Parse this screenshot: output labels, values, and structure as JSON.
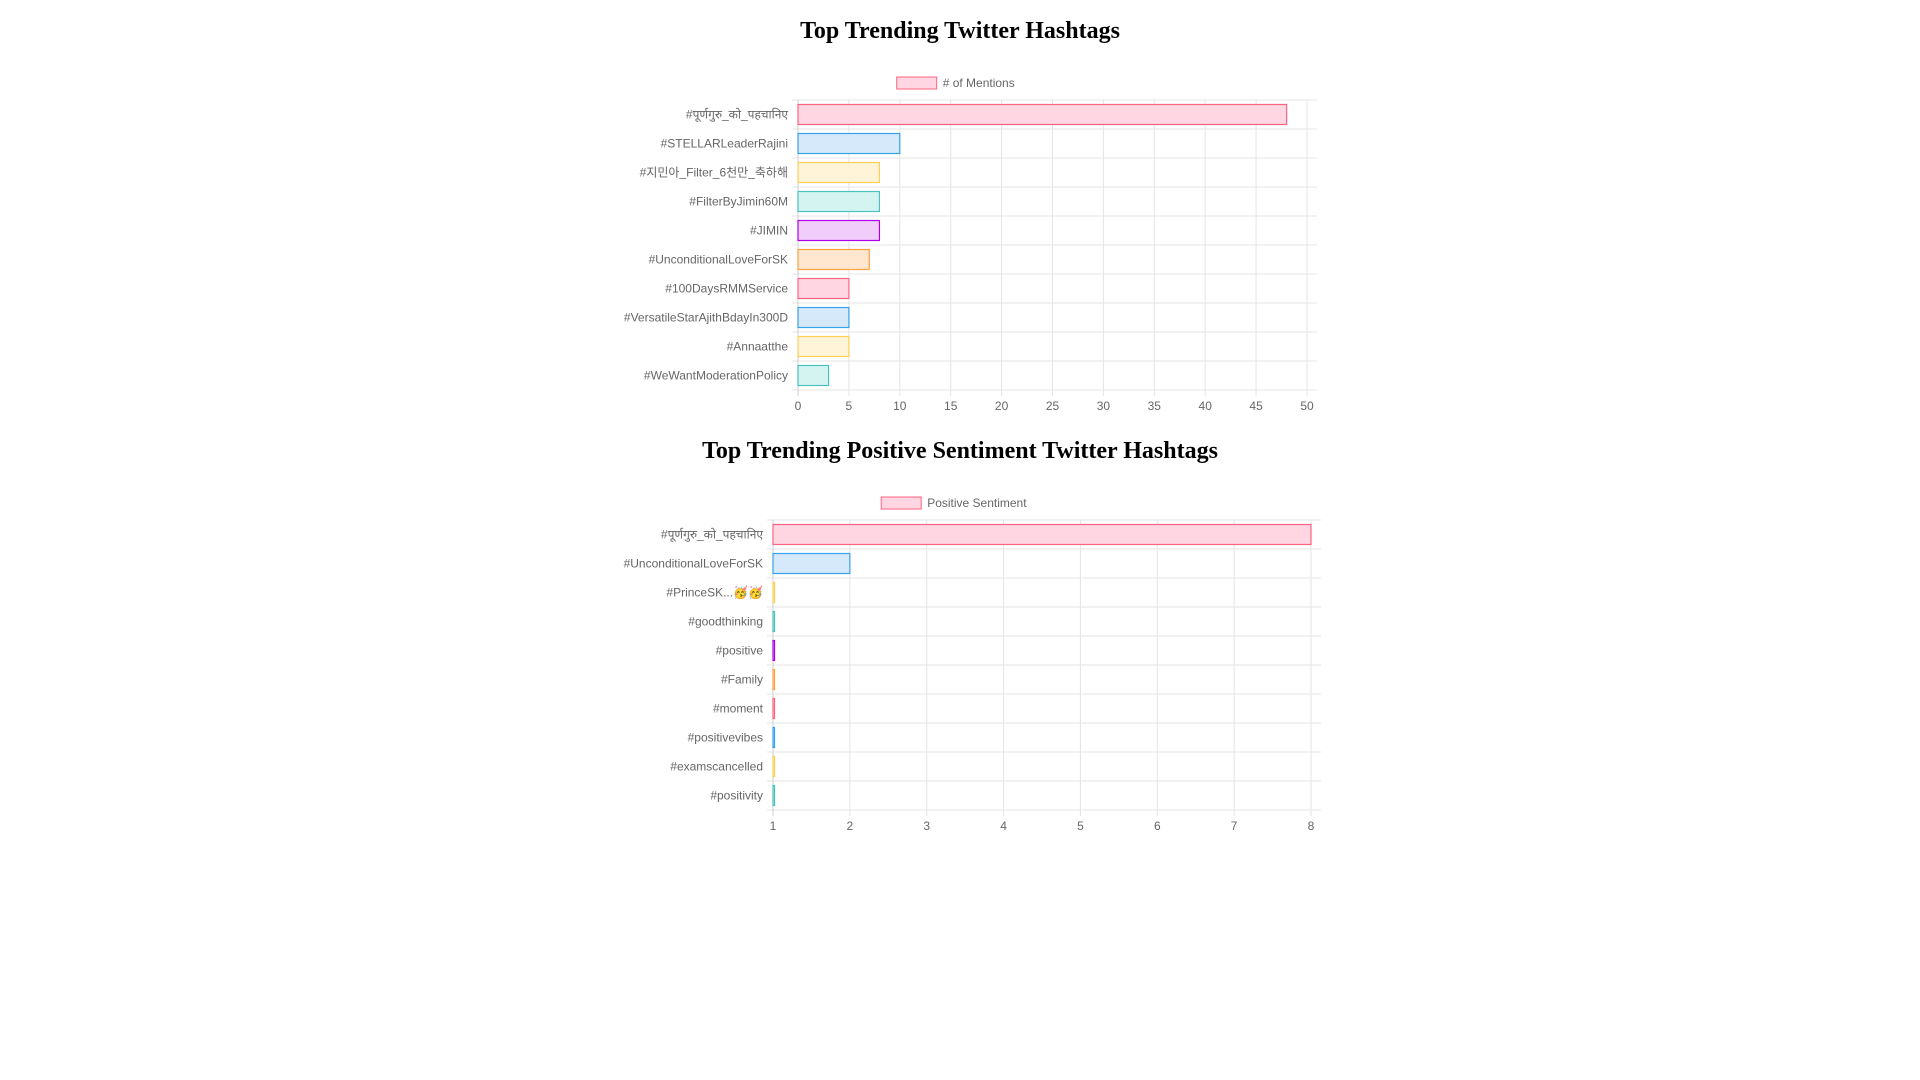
{
  "chart_data": [
    {
      "type": "bar",
      "orientation": "horizontal",
      "title": "Top Trending Twitter Hashtags",
      "legend": "top",
      "grid": true,
      "series": [
        {
          "name": "# of Mentions",
          "values": [
            48,
            10,
            8,
            8,
            8,
            7,
            5,
            5,
            5,
            3
          ]
        }
      ],
      "categories": [
        "#पूर्णगुरु_को_पहचानिए",
        "#STELLARLeaderRajini",
        "#지민아_Filter_6천만_축하해",
        "#FilterByJimin60M",
        "#JIMIN",
        "#UnconditionalLoveForSK",
        "#100DaysRMMService",
        "#VersatileStarAjithBdayIn300D",
        "#Annaatthe",
        "#WeWantModerationPolicy"
      ],
      "xlim": [
        0,
        50
      ],
      "xticks": [
        0,
        5,
        10,
        15,
        20,
        25,
        30,
        35,
        40,
        45,
        50
      ]
    },
    {
      "type": "bar",
      "orientation": "horizontal",
      "title": "Top Trending Positive Sentiment Twitter Hashtags",
      "legend": "top",
      "grid": true,
      "series": [
        {
          "name": "Positive Sentiment",
          "values": [
            8,
            2,
            1,
            1,
            1,
            1,
            1,
            1,
            1,
            1
          ]
        }
      ],
      "categories": [
        "#पूर्णगुरु_को_पहचानिए",
        "#UnconditionalLoveForSK",
        "#PrinceSK...🥳🥳",
        "#goodthinking",
        "#positive",
        "#Family",
        "#moment",
        "#positivevibes",
        "#examscancelled",
        "#positivity"
      ],
      "xlim": [
        1,
        8
      ],
      "xticks": [
        1,
        2,
        3,
        4,
        5,
        6,
        7,
        8
      ]
    }
  ],
  "palette": [
    {
      "fill": "#ffd6e1",
      "stroke": "#ff6384"
    },
    {
      "fill": "#d6e9fb",
      "stroke": "#36a2eb"
    },
    {
      "fill": "#fff4d7",
      "stroke": "#ffce56"
    },
    {
      "fill": "#d4f4f2",
      "stroke": "#4bc0c0"
    },
    {
      "fill": "#f0cdfa",
      "stroke": "#b000e8"
    },
    {
      "fill": "#ffe6cf",
      "stroke": "#ff9f40"
    }
  ],
  "colors": {
    "legend_fill": "#ffd6e1",
    "legend_stroke": "#ff6384",
    "grid": "#e5e5e5",
    "text": "#666666"
  }
}
